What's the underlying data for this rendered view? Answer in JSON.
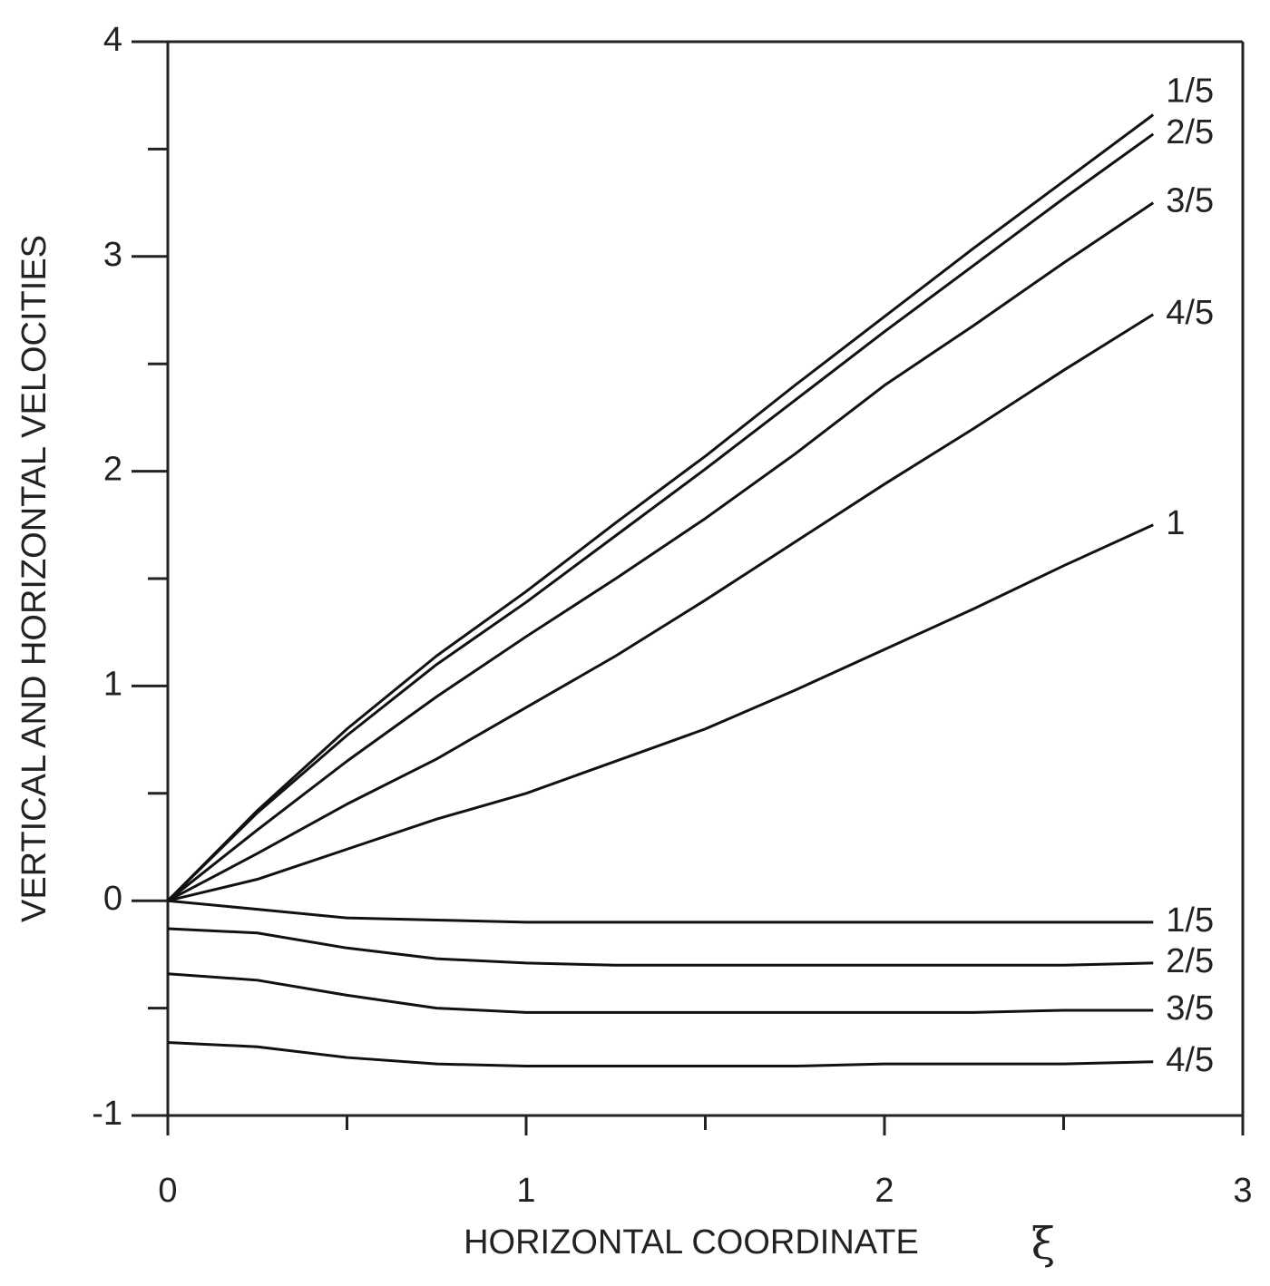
{
  "chart_data": {
    "type": "line",
    "x_label": "HORIZONTAL COORDINATE",
    "x_symbol": "ξ",
    "y_label": "VERTICAL AND HORIZONTAL VELOCITIES",
    "x": [
      0,
      0.25,
      0.5,
      0.75,
      1,
      1.25,
      1.5,
      1.75,
      2,
      2.25,
      2.5,
      2.75
    ],
    "series": [
      {
        "name": "1/5",
        "color": "#111111",
        "values": [
          0,
          0.42,
          0.8,
          1.14,
          1.44,
          1.76,
          2.07,
          2.4,
          2.72,
          3.04,
          3.35,
          3.66
        ]
      },
      {
        "name": "2/5",
        "color": "#111111",
        "values": [
          0,
          0.41,
          0.77,
          1.1,
          1.39,
          1.7,
          2.01,
          2.33,
          2.65,
          2.96,
          3.27,
          3.57
        ]
      },
      {
        "name": "3/5",
        "color": "#111111",
        "values": [
          0,
          0.33,
          0.65,
          0.95,
          1.23,
          1.5,
          1.78,
          2.08,
          2.4,
          2.68,
          2.97,
          3.25
        ]
      },
      {
        "name": "4/5",
        "color": "#111111",
        "values": [
          0,
          0.22,
          0.45,
          0.66,
          0.9,
          1.14,
          1.4,
          1.67,
          1.94,
          2.2,
          2.47,
          2.73
        ]
      },
      {
        "name": "1",
        "color": "#111111",
        "values": [
          0,
          0.1,
          0.24,
          0.38,
          0.5,
          0.65,
          0.8,
          0.98,
          1.17,
          1.36,
          1.56,
          1.75
        ]
      },
      {
        "name": "1/5",
        "color": "#111111",
        "values": [
          0,
          -0.04,
          -0.08,
          -0.09,
          -0.1,
          -0.1,
          -0.1,
          -0.1,
          -0.1,
          -0.1,
          -0.1,
          -0.1
        ]
      },
      {
        "name": "2/5",
        "color": "#111111",
        "values": [
          -0.13,
          -0.15,
          -0.22,
          -0.27,
          -0.29,
          -0.3,
          -0.3,
          -0.3,
          -0.3,
          -0.3,
          -0.3,
          -0.29
        ]
      },
      {
        "name": "3/5",
        "color": "#111111",
        "values": [
          -0.34,
          -0.37,
          -0.44,
          -0.5,
          -0.52,
          -0.52,
          -0.52,
          -0.52,
          -0.52,
          -0.52,
          -0.51,
          -0.51
        ]
      },
      {
        "name": "4/5",
        "color": "#111111",
        "values": [
          -0.66,
          -0.68,
          -0.73,
          -0.76,
          -0.77,
          -0.77,
          -0.77,
          -0.77,
          -0.76,
          -0.76,
          -0.76,
          -0.75
        ]
      }
    ],
    "xlim": [
      0,
      3
    ],
    "xticks": [
      0,
      1,
      2,
      3
    ],
    "xticks_minor": [
      0.5,
      1.5,
      2.5
    ],
    "ylim": [
      -1,
      4
    ],
    "yticks": [
      -1,
      0,
      1,
      2,
      3,
      4
    ],
    "yticks_minor": [
      -0.5,
      0.5,
      1.5,
      2.5,
      3.5
    ],
    "grid": false
  }
}
